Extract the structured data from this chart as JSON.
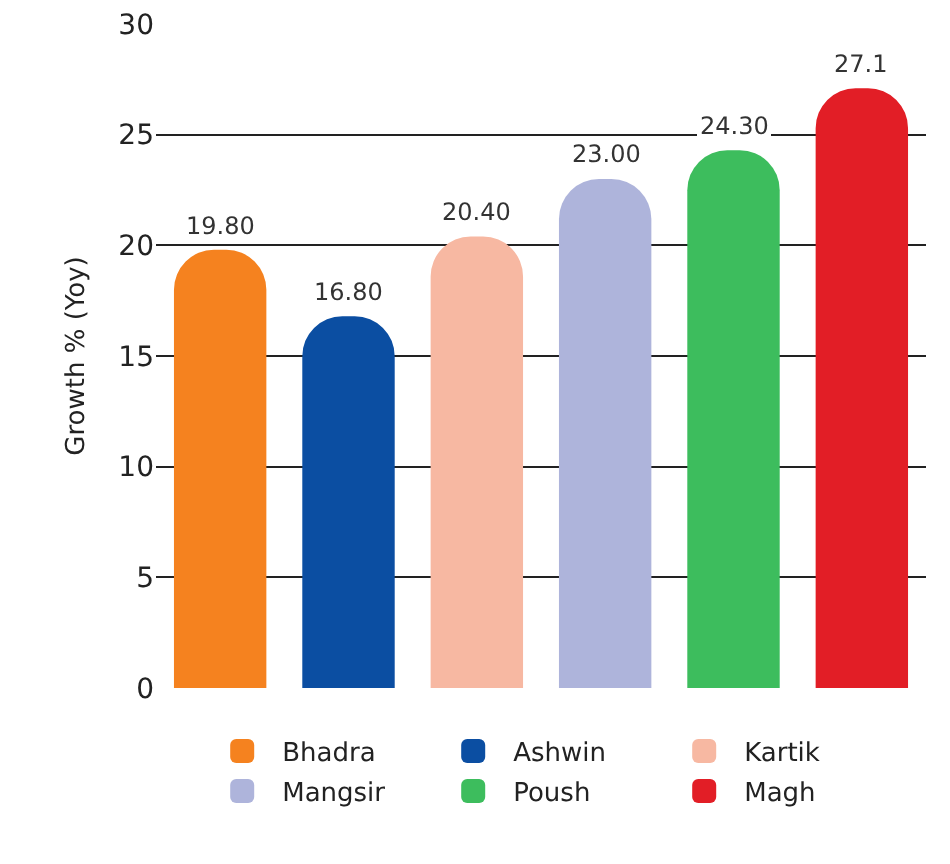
{
  "chart_data": {
    "type": "bar",
    "ylabel": "Growth % (Yoy)",
    "categories": [
      null,
      null,
      null,
      null,
      null,
      null
    ],
    "series": [
      {
        "name": "Bhadra",
        "color": "#f5821f",
        "values": [
          19.8,
          null,
          null,
          null,
          null,
          null
        ],
        "value_labels": [
          "19.80",
          null,
          null,
          null,
          null,
          null
        ]
      },
      {
        "name": "Ashwin",
        "color": "#0b4ea2",
        "values": [
          null,
          16.8,
          null,
          null,
          null,
          null
        ],
        "value_labels": [
          null,
          "16.80",
          null,
          null,
          null,
          null
        ]
      },
      {
        "name": "Kartik",
        "color": "#f7b8a2",
        "values": [
          null,
          null,
          20.4,
          null,
          null,
          null
        ],
        "value_labels": [
          null,
          null,
          "20.40",
          null,
          null,
          null
        ]
      },
      {
        "name": "Mangsir",
        "color": "#aeb4db",
        "values": [
          null,
          null,
          null,
          23.0,
          null,
          null
        ],
        "value_labels": [
          null,
          null,
          null,
          "23.00",
          null,
          null
        ]
      },
      {
        "name": "Poush",
        "color": "#3dbd5d",
        "values": [
          null,
          null,
          null,
          null,
          24.3,
          null
        ],
        "value_labels": [
          null,
          null,
          null,
          null,
          "24.30",
          null
        ]
      },
      {
        "name": "Magh",
        "color": "#e21e26",
        "values": [
          null,
          null,
          null,
          null,
          null,
          27.1
        ],
        "value_labels": [
          null,
          null,
          null,
          null,
          null,
          "27.1"
        ]
      }
    ],
    "ylim": [
      0,
      30
    ],
    "yticks": [
      0,
      5,
      10,
      15,
      20,
      25,
      30
    ],
    "grid": "y",
    "legend": "bottom"
  }
}
